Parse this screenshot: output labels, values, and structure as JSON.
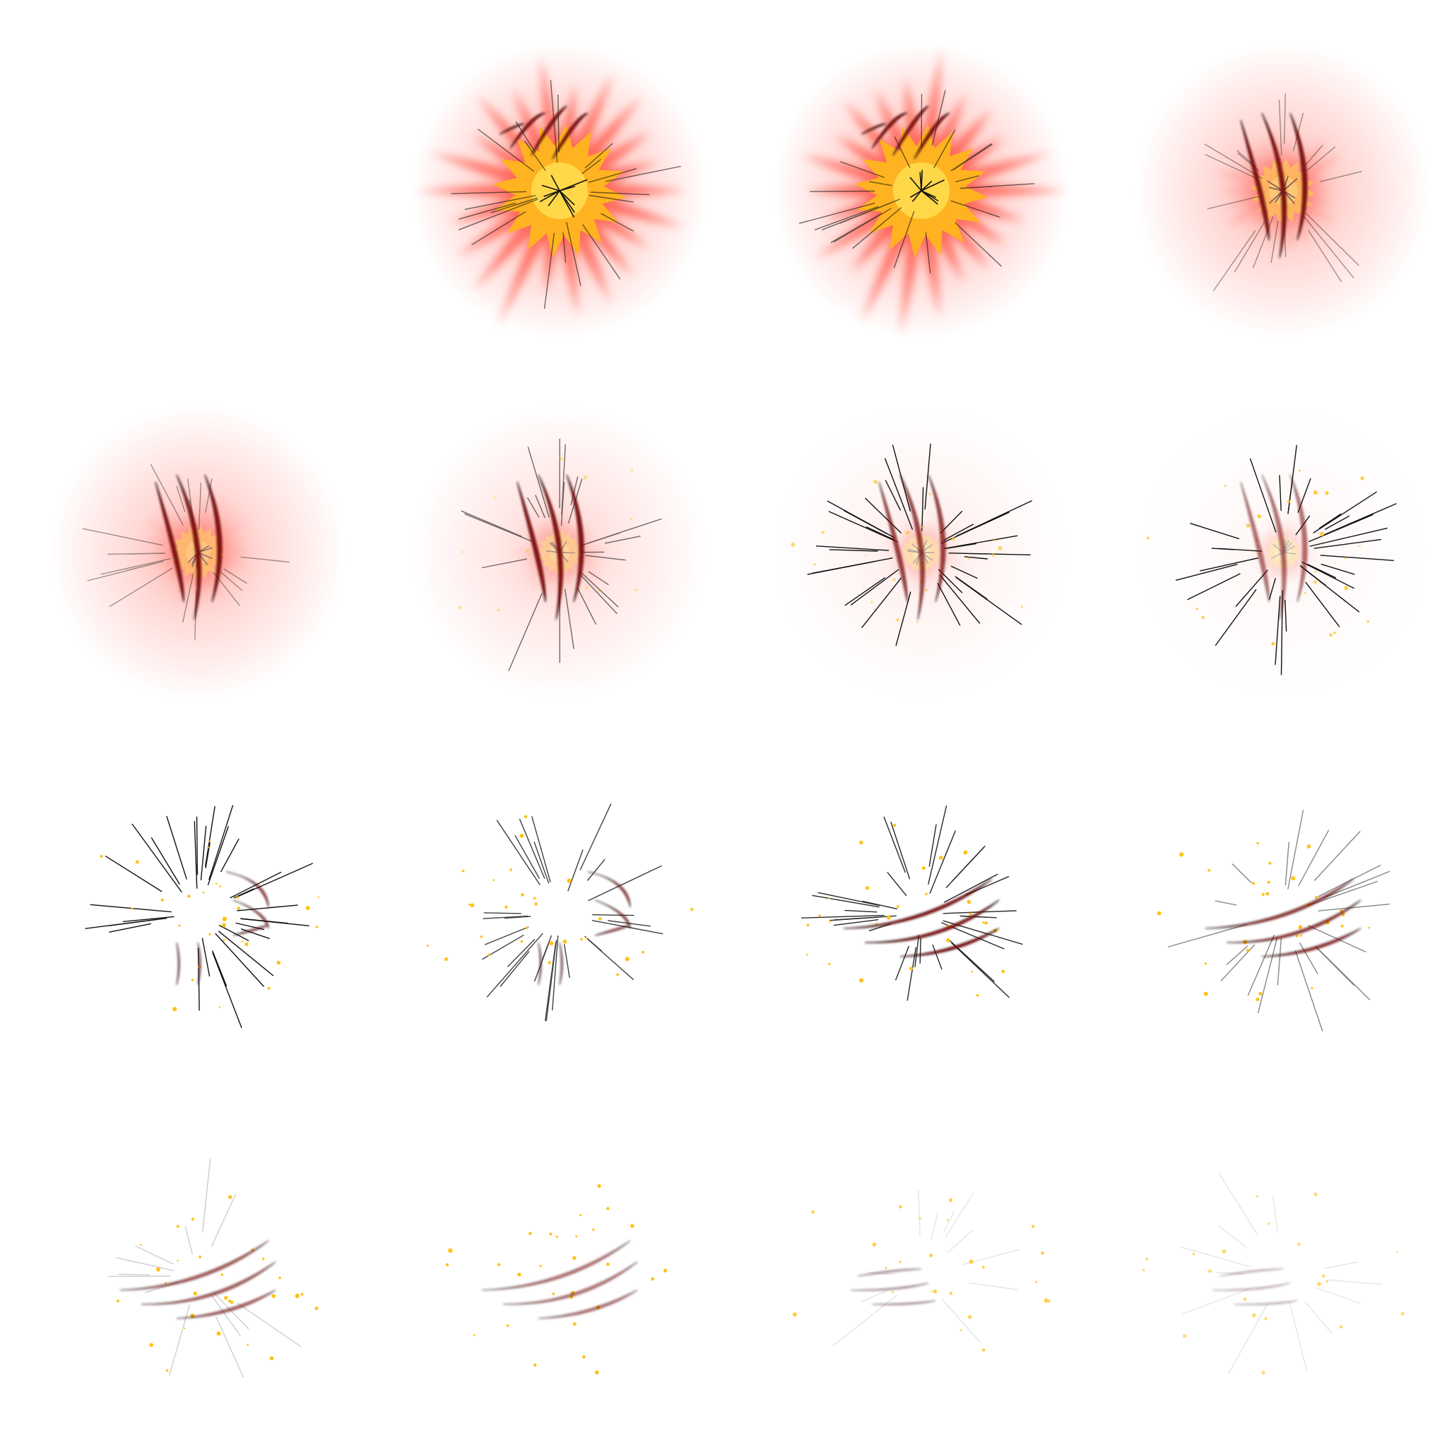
{
  "sprite_sheet": {
    "grid": {
      "columns": 4,
      "rows": 4
    },
    "colors": {
      "background": "#ffffff",
      "glow": "#ff3b2a",
      "core": "#ffb320",
      "core_highlight": "#ffd84a",
      "claw": "#8b0a0a",
      "claw_edge": "#2a0404",
      "streak": "#111111",
      "spark": "#ffc21a"
    },
    "frames": [
      {
        "glow": 0.0,
        "burst": 0.0,
        "claw": "none",
        "claw_opacity": 0.0,
        "streaks": 0.0,
        "sparks": 0.0
      },
      {
        "glow": 1.0,
        "burst": 1.0,
        "claw": "small_up",
        "claw_opacity": 1.0,
        "streaks": 0.6,
        "sparks": 0.0
      },
      {
        "glow": 1.0,
        "burst": 1.0,
        "claw": "small_up",
        "claw_opacity": 1.0,
        "streaks": 0.6,
        "sparks": 0.0
      },
      {
        "glow": 0.8,
        "burst": 0.35,
        "claw": "vertical",
        "claw_opacity": 1.0,
        "streaks": 0.4,
        "sparks": 0.0
      },
      {
        "glow": 0.75,
        "burst": 0.25,
        "claw": "vertical",
        "claw_opacity": 1.0,
        "streaks": 0.4,
        "sparks": 0.0
      },
      {
        "glow": 0.45,
        "burst": 0.15,
        "claw": "vertical",
        "claw_opacity": 1.0,
        "streaks": 0.6,
        "sparks": 0.4
      },
      {
        "glow": 0.2,
        "burst": 0.1,
        "claw": "vertical",
        "claw_opacity": 0.8,
        "streaks": 1.0,
        "sparks": 0.6
      },
      {
        "glow": 0.1,
        "burst": 0.05,
        "claw": "vertical",
        "claw_opacity": 0.6,
        "streaks": 1.0,
        "sparks": 0.8
      },
      {
        "glow": 0.0,
        "burst": 0.0,
        "claw": "mixed",
        "claw_opacity": 0.8,
        "streaks": 1.0,
        "sparks": 1.0
      },
      {
        "glow": 0.0,
        "burst": 0.0,
        "claw": "mixed",
        "claw_opacity": 0.8,
        "streaks": 0.8,
        "sparks": 1.0
      },
      {
        "glow": 0.0,
        "burst": 0.0,
        "claw": "horizontal",
        "claw_opacity": 1.0,
        "streaks": 0.9,
        "sparks": 1.0
      },
      {
        "glow": 0.0,
        "burst": 0.0,
        "claw": "horizontal",
        "claw_opacity": 0.85,
        "streaks": 0.5,
        "sparks": 1.0
      },
      {
        "glow": 0.0,
        "burst": 0.0,
        "claw": "horizontal",
        "claw_opacity": 0.7,
        "streaks": 0.2,
        "sparks": 1.0
      },
      {
        "glow": 0.0,
        "burst": 0.0,
        "claw": "horizontal",
        "claw_opacity": 0.6,
        "streaks": 0.0,
        "sparks": 1.0
      },
      {
        "glow": 0.0,
        "burst": 0.0,
        "claw": "horizontal_small",
        "claw_opacity": 0.5,
        "streaks": 0.1,
        "sparks": 0.8
      },
      {
        "glow": 0.0,
        "burst": 0.0,
        "claw": "horizontal_small",
        "claw_opacity": 0.35,
        "streaks": 0.1,
        "sparks": 0.6
      }
    ]
  }
}
